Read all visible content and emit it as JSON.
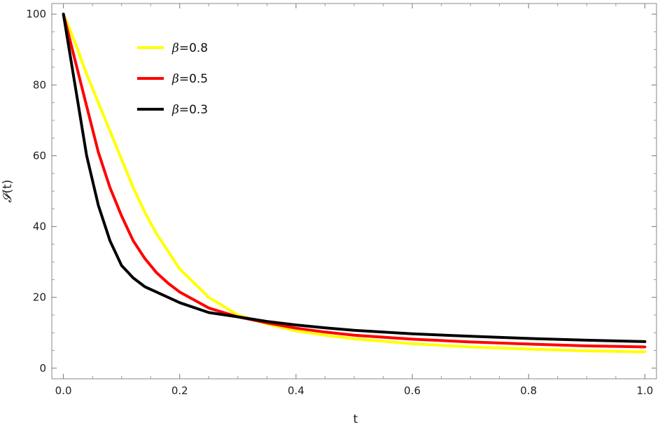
{
  "chart_data": {
    "type": "line",
    "title": "",
    "xlabel": "t",
    "ylabel_symbol": "𝓢",
    "ylabel_arg": "(t)",
    "xlim": [
      -0.02,
      1.02
    ],
    "ylim": [
      -3,
      103
    ],
    "x_ticks": [
      0.0,
      0.2,
      0.4,
      0.6,
      0.8,
      1.0
    ],
    "x_tick_labels": [
      "0.0",
      "0.2",
      "0.4",
      "0.6",
      "0.8",
      "1.0"
    ],
    "y_ticks": [
      0,
      20,
      40,
      60,
      80,
      100
    ],
    "y_tick_labels": [
      "0",
      "20",
      "40",
      "60",
      "80",
      "100"
    ],
    "grid": false,
    "legend_position": "top-left",
    "legend_symbol": "β",
    "x": [
      0.0,
      0.02,
      0.04,
      0.06,
      0.08,
      0.1,
      0.12,
      0.14,
      0.16,
      0.18,
      0.2,
      0.25,
      0.3,
      0.35,
      0.4,
      0.45,
      0.5,
      0.6,
      0.7,
      0.8,
      0.9,
      1.0
    ],
    "series": [
      {
        "name": "=0.8",
        "color": "#ffff00",
        "values": [
          100,
          92,
          83,
          75,
          67,
          59,
          51,
          44,
          38,
          33,
          28,
          20,
          15,
          12.5,
          10.5,
          9.3,
          8.3,
          6.9,
          6.0,
          5.4,
          4.9,
          4.6
        ]
      },
      {
        "name": "=0.5",
        "color": "#ff0000",
        "values": [
          100,
          87,
          74,
          61,
          51,
          43,
          36,
          31,
          27,
          24,
          21.5,
          17,
          14.5,
          12.8,
          11.3,
          10.2,
          9.3,
          8.2,
          7.4,
          6.8,
          6.3,
          6.0
        ]
      },
      {
        "name": "=0.3",
        "color": "#000000",
        "values": [
          100,
          80,
          60,
          46,
          36,
          29,
          25.5,
          23,
          21.5,
          20,
          18.5,
          15.7,
          14.5,
          13.2,
          12.2,
          11.4,
          10.7,
          9.7,
          9.0,
          8.4,
          7.9,
          7.5
        ]
      }
    ]
  }
}
